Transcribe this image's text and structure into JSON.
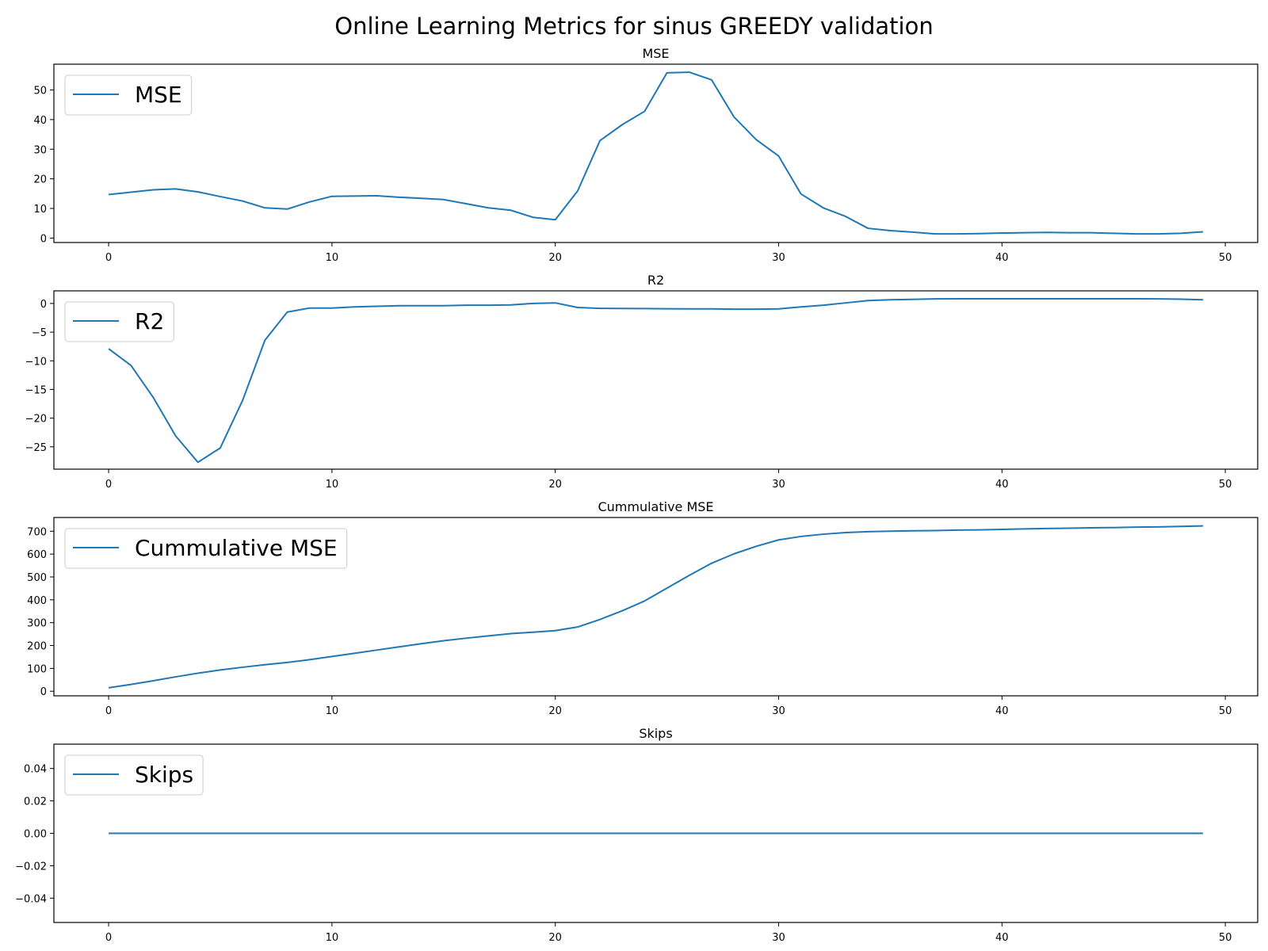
{
  "figure": {
    "title": "Online Learning Metrics for sinus GREEDY validation",
    "line_color": "#1f77b4"
  },
  "chart_data": [
    {
      "type": "line",
      "title": "MSE",
      "xlabel": "",
      "ylabel": "",
      "xlim": [
        -2.45,
        51.45
      ],
      "ylim": [
        -1.5,
        58.7
      ],
      "xticks": [
        0,
        10,
        20,
        30,
        40,
        50
      ],
      "xtick_labels": [
        "0",
        "10",
        "20",
        "30",
        "40",
        "50"
      ],
      "yticks": [
        0,
        10,
        20,
        30,
        40,
        50
      ],
      "ytick_labels": [
        "0",
        "10",
        "20",
        "30",
        "40",
        "50"
      ],
      "grid": false,
      "legend": "upper left",
      "series": [
        {
          "name": "MSE",
          "color": "#1f77b4",
          "x": [
            0,
            1,
            2,
            3,
            4,
            5,
            6,
            7,
            8,
            9,
            10,
            11,
            12,
            13,
            14,
            15,
            16,
            17,
            18,
            19,
            20,
            21,
            22,
            23,
            24,
            25,
            26,
            27,
            28,
            29,
            30,
            31,
            32,
            33,
            34,
            35,
            36,
            37,
            38,
            39,
            40,
            41,
            42,
            43,
            44,
            45,
            46,
            47,
            48,
            49
          ],
          "values": [
            14.7,
            15.5,
            16.3,
            16.6,
            15.6,
            14.0,
            12.5,
            10.2,
            9.8,
            12.2,
            14.1,
            14.2,
            14.3,
            13.8,
            13.4,
            13.0,
            11.6,
            10.2,
            9.4,
            7.0,
            6.2,
            15.9,
            32.9,
            38.3,
            42.8,
            55.8,
            56.0,
            53.4,
            40.9,
            33.2,
            27.7,
            14.9,
            10.2,
            7.3,
            3.3,
            2.5,
            2.0,
            1.4,
            1.4,
            1.5,
            1.7,
            1.8,
            1.9,
            1.8,
            1.8,
            1.6,
            1.4,
            1.4,
            1.6,
            2.1
          ]
        }
      ]
    },
    {
      "type": "line",
      "title": "R2",
      "xlabel": "",
      "ylabel": "",
      "xlim": [
        -2.45,
        51.45
      ],
      "ylim": [
        -28.9,
        2.2
      ],
      "xticks": [
        0,
        10,
        20,
        30,
        40,
        50
      ],
      "xtick_labels": [
        "0",
        "10",
        "20",
        "30",
        "40",
        "50"
      ],
      "yticks": [
        -25,
        -20,
        -15,
        -10,
        -5,
        0
      ],
      "ytick_labels": [
        "−25",
        "−20",
        "−15",
        "−10",
        "−5",
        "0"
      ],
      "grid": false,
      "legend": "upper left",
      "series": [
        {
          "name": "R2",
          "color": "#1f77b4",
          "x": [
            0,
            1,
            2,
            3,
            4,
            5,
            6,
            7,
            8,
            9,
            10,
            11,
            12,
            13,
            14,
            15,
            16,
            17,
            18,
            19,
            20,
            21,
            22,
            23,
            24,
            25,
            26,
            27,
            28,
            29,
            30,
            31,
            32,
            33,
            34,
            35,
            36,
            37,
            38,
            39,
            40,
            41,
            42,
            43,
            44,
            45,
            46,
            47,
            48,
            49
          ],
          "values": [
            -7.9,
            -10.8,
            -16.4,
            -23.1,
            -27.7,
            -25.2,
            -16.9,
            -6.4,
            -1.5,
            -0.8,
            -0.8,
            -0.6,
            -0.5,
            -0.4,
            -0.4,
            -0.4,
            -0.3,
            -0.3,
            -0.25,
            0.0,
            0.1,
            -0.7,
            -0.85,
            -0.88,
            -0.9,
            -0.92,
            -0.95,
            -0.95,
            -1.0,
            -1.0,
            -0.95,
            -0.6,
            -0.3,
            0.1,
            0.5,
            0.65,
            0.72,
            0.8,
            0.82,
            0.82,
            0.82,
            0.82,
            0.82,
            0.82,
            0.82,
            0.82,
            0.82,
            0.8,
            0.75,
            0.65
          ]
        }
      ]
    },
    {
      "type": "line",
      "title": "Cummulative MSE",
      "xlabel": "",
      "ylabel": "",
      "xlim": [
        -2.45,
        51.45
      ],
      "ylim": [
        -20,
        760
      ],
      "xticks": [
        0,
        10,
        20,
        30,
        40,
        50
      ],
      "xtick_labels": [
        "0",
        "10",
        "20",
        "30",
        "40",
        "50"
      ],
      "yticks": [
        0,
        100,
        200,
        300,
        400,
        500,
        600,
        700
      ],
      "ytick_labels": [
        "0",
        "100",
        "200",
        "300",
        "400",
        "500",
        "600",
        "700"
      ],
      "grid": false,
      "legend": "upper left",
      "series": [
        {
          "name": "Cummulative MSE",
          "color": "#1f77b4",
          "x": [
            0,
            1,
            2,
            3,
            4,
            5,
            6,
            7,
            8,
            9,
            10,
            11,
            12,
            13,
            14,
            15,
            16,
            17,
            18,
            19,
            20,
            21,
            22,
            23,
            24,
            25,
            26,
            27,
            28,
            29,
            30,
            31,
            32,
            33,
            34,
            35,
            36,
            37,
            38,
            39,
            40,
            41,
            42,
            43,
            44,
            45,
            46,
            47,
            48,
            49
          ],
          "values": [
            15,
            30,
            46,
            63,
            79,
            93,
            105,
            116,
            126,
            138,
            152,
            166,
            180,
            194,
            208,
            221,
            232,
            242,
            252,
            258,
            265,
            281,
            314,
            352,
            395,
            451,
            507,
            560,
            601,
            634,
            662,
            677,
            687,
            694,
            698,
            700,
            702,
            703,
            705,
            706,
            708,
            710,
            712,
            713,
            715,
            716,
            718,
            719,
            721,
            723
          ]
        }
      ]
    },
    {
      "type": "line",
      "title": "Skips",
      "xlabel": "",
      "ylabel": "",
      "xlim": [
        -2.45,
        51.45
      ],
      "ylim": [
        -0.055,
        0.055
      ],
      "xticks": [
        0,
        10,
        20,
        30,
        40,
        50
      ],
      "xtick_labels": [
        "0",
        "10",
        "20",
        "30",
        "40",
        "50"
      ],
      "yticks": [
        -0.04,
        -0.02,
        0.0,
        0.02,
        0.04
      ],
      "ytick_labels": [
        "−0.04",
        "−0.02",
        "0.00",
        "0.02",
        "0.04"
      ],
      "grid": false,
      "legend": "upper left",
      "series": [
        {
          "name": "Skips",
          "color": "#1f77b4",
          "x": [
            0,
            1,
            2,
            3,
            4,
            5,
            6,
            7,
            8,
            9,
            10,
            11,
            12,
            13,
            14,
            15,
            16,
            17,
            18,
            19,
            20,
            21,
            22,
            23,
            24,
            25,
            26,
            27,
            28,
            29,
            30,
            31,
            32,
            33,
            34,
            35,
            36,
            37,
            38,
            39,
            40,
            41,
            42,
            43,
            44,
            45,
            46,
            47,
            48,
            49
          ],
          "values": [
            0,
            0,
            0,
            0,
            0,
            0,
            0,
            0,
            0,
            0,
            0,
            0,
            0,
            0,
            0,
            0,
            0,
            0,
            0,
            0,
            0,
            0,
            0,
            0,
            0,
            0,
            0,
            0,
            0,
            0,
            0,
            0,
            0,
            0,
            0,
            0,
            0,
            0,
            0,
            0,
            0,
            0,
            0,
            0,
            0,
            0,
            0,
            0,
            0,
            0
          ]
        }
      ]
    }
  ]
}
